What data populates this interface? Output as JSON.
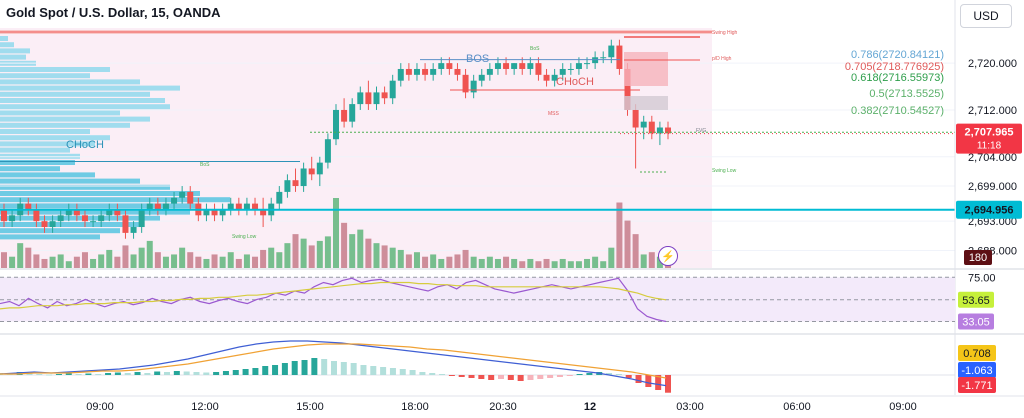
{
  "window": {
    "title": "Gold Spot / U.S. Dollar, 15, OANDA",
    "currency_button": "USD",
    "indicator_badge": "180"
  },
  "chart_data": [
    {
      "type": "candlestick",
      "name": "price",
      "ylim": [
        2685,
        2726
      ],
      "y_ticks": [
        "2,720.000",
        "2,712.000",
        "2,704.000",
        "2,699.000",
        "2,693.000",
        "2,688.000"
      ],
      "y_tick_values": [
        2720,
        2712,
        2704,
        2699,
        2693,
        2688
      ],
      "price_labels": [
        {
          "text": "2,707.965",
          "sub": "11:18",
          "value": 2707.965,
          "color": "#f23645"
        },
        {
          "text": "2,694.956",
          "value": 2694.956,
          "color": "#00bcd4"
        }
      ],
      "x_ticks": [
        "09:00",
        "12:00",
        "15:00",
        "18:00",
        "20:30",
        "12",
        "03:00",
        "06:00",
        "09:00"
      ],
      "fib_levels": [
        {
          "label": "0.786(2720.84121)",
          "value": 2720.84121,
          "color": "#64a6d4"
        },
        {
          "label": "0.705(2718.776925)",
          "value": 2718.776925,
          "color": "#e05a5a"
        },
        {
          "label": "0.618(2716.55973)",
          "value": 2716.55973,
          "color": "#2e9e4b"
        },
        {
          "label": "0.5(2713.5525)",
          "value": 2713.5525,
          "color": "#5bb06a"
        },
        {
          "label": "0.382(2710.54527)",
          "value": 2710.54527,
          "color": "#5bb06a"
        }
      ],
      "annotations": [
        {
          "text": "BOS",
          "color": "#5b8fc7"
        },
        {
          "text": "CHoCH",
          "color": "#e05a5a"
        },
        {
          "text": "CHoCH",
          "color": "#2e93b8"
        },
        {
          "text": "BoS",
          "color": "#4caf50"
        },
        {
          "text": "BoS",
          "color": "#4caf50"
        },
        {
          "text": "MSS",
          "color": "#e05a5a"
        },
        {
          "text": "Swing High",
          "color": "#e05a5a"
        },
        {
          "text": "p/D High",
          "color": "#e05a5a"
        },
        {
          "text": "Swing Low",
          "color": "#4caf50"
        },
        {
          "text": "Swing Low",
          "color": "#4caf50"
        },
        {
          "text": "FVG",
          "color": "#787b86"
        }
      ],
      "candles": [
        [
          2695,
          2696,
          2692,
          2693
        ],
        [
          2693,
          2695,
          2692,
          2694
        ],
        [
          2694,
          2697,
          2693,
          2696
        ],
        [
          2696,
          2697,
          2694,
          2695
        ],
        [
          2695,
          2696,
          2692,
          2693
        ],
        [
          2693,
          2694,
          2691,
          2692
        ],
        [
          2692,
          2694,
          2691,
          2693
        ],
        [
          2693,
          2695,
          2692,
          2694
        ],
        [
          2694,
          2696,
          2693,
          2695
        ],
        [
          2695,
          2696,
          2693,
          2694
        ],
        [
          2694,
          2695,
          2692,
          2693
        ],
        [
          2693,
          2694,
          2692,
          2693
        ],
        [
          2693,
          2695,
          2692,
          2694
        ],
        [
          2694,
          2696,
          2693,
          2695
        ],
        [
          2695,
          2696,
          2693,
          2694
        ],
        [
          2694,
          2695,
          2690,
          2691
        ],
        [
          2691,
          2693,
          2690,
          2692
        ],
        [
          2692,
          2696,
          2691,
          2695
        ],
        [
          2695,
          2697,
          2694,
          2696
        ],
        [
          2696,
          2697,
          2694,
          2695
        ],
        [
          2695,
          2697,
          2694,
          2696
        ],
        [
          2696,
          2698,
          2695,
          2697
        ],
        [
          2697,
          2699,
          2696,
          2698
        ],
        [
          2698,
          2699,
          2695,
          2696
        ],
        [
          2696,
          2697,
          2693,
          2694
        ],
        [
          2694,
          2696,
          2693,
          2695
        ],
        [
          2695,
          2696,
          2693,
          2694
        ],
        [
          2694,
          2696,
          2693,
          2695
        ],
        [
          2695,
          2697,
          2694,
          2696
        ],
        [
          2696,
          2697,
          2694,
          2695
        ],
        [
          2695,
          2697,
          2694,
          2696
        ],
        [
          2696,
          2697,
          2694,
          2695
        ],
        [
          2695,
          2697,
          2692,
          2694
        ],
        [
          2694,
          2697,
          2693,
          2696
        ],
        [
          2696,
          2699,
          2695,
          2698
        ],
        [
          2698,
          2701,
          2697,
          2700
        ],
        [
          2700,
          2702,
          2698,
          2699
        ],
        [
          2699,
          2703,
          2698,
          2702
        ],
        [
          2702,
          2704,
          2700,
          2701
        ],
        [
          2701,
          2704,
          2699,
          2703
        ],
        [
          2703,
          2708,
          2702,
          2707
        ],
        [
          2707,
          2713,
          2706,
          2712
        ],
        [
          2712,
          2714,
          2709,
          2710
        ],
        [
          2710,
          2714,
          2709,
          2713
        ],
        [
          2713,
          2716,
          2712,
          2715
        ],
        [
          2715,
          2717,
          2712,
          2713
        ],
        [
          2713,
          2716,
          2712,
          2715
        ],
        [
          2715,
          2716,
          2713,
          2714
        ],
        [
          2714,
          2718,
          2713,
          2717
        ],
        [
          2717,
          2720,
          2716,
          2719
        ],
        [
          2719,
          2720,
          2717,
          2718
        ],
        [
          2718,
          2720,
          2717,
          2719
        ],
        [
          2719,
          2720,
          2717,
          2718
        ],
        [
          2718,
          2720,
          2717,
          2719
        ],
        [
          2719,
          2721,
          2718,
          2720
        ],
        [
          2720,
          2721,
          2718,
          2719
        ],
        [
          2719,
          2720,
          2717,
          2718
        ],
        [
          2718,
          2719,
          2714,
          2715
        ],
        [
          2715,
          2718,
          2714,
          2717
        ],
        [
          2717,
          2719,
          2716,
          2718
        ],
        [
          2718,
          2720,
          2717,
          2719
        ],
        [
          2719,
          2721,
          2718,
          2720
        ],
        [
          2720,
          2721,
          2718,
          2719
        ],
        [
          2719,
          2720,
          2718,
          2720
        ],
        [
          2720,
          2721,
          2718,
          2719
        ],
        [
          2719,
          2721,
          2718,
          2720
        ],
        [
          2720,
          2721,
          2717,
          2718
        ],
        [
          2718,
          2719,
          2716,
          2717
        ],
        [
          2717,
          2719,
          2716,
          2718
        ],
        [
          2718,
          2720,
          2717,
          2719
        ],
        [
          2719,
          2720,
          2718,
          2719
        ],
        [
          2719,
          2721,
          2718,
          2720
        ],
        [
          2720,
          2721,
          2719,
          2720
        ],
        [
          2720,
          2722,
          2719,
          2721
        ],
        [
          2721,
          2722,
          2720,
          2721
        ],
        [
          2721,
          2724,
          2720,
          2723
        ],
        [
          2723,
          2724,
          2718,
          2719
        ],
        [
          2719,
          2720,
          2711,
          2712
        ],
        [
          2712,
          2713,
          2702,
          2709
        ],
        [
          2709,
          2711,
          2707,
          2710
        ],
        [
          2710,
          2711,
          2707,
          2708
        ],
        [
          2708,
          2710,
          2706,
          2709
        ],
        [
          2709,
          2710,
          2707,
          2708
        ]
      ],
      "volume": [
        14,
        10,
        22,
        18,
        12,
        8,
        10,
        12,
        6,
        10,
        14,
        8,
        12,
        16,
        10,
        20,
        12,
        18,
        24,
        14,
        10,
        12,
        18,
        14,
        10,
        8,
        12,
        10,
        14,
        8,
        12,
        10,
        16,
        18,
        14,
        22,
        30,
        26,
        20,
        24,
        28,
        62,
        40,
        30,
        34,
        26,
        22,
        20,
        18,
        16,
        12,
        14,
        10,
        12,
        8,
        10,
        12,
        16,
        10,
        8,
        10,
        8,
        10,
        8,
        6,
        8,
        6,
        8,
        6,
        8,
        6,
        6,
        8,
        10,
        6,
        18,
        58,
        42,
        30,
        12,
        14,
        10,
        8
      ]
    },
    {
      "type": "line",
      "name": "oscillator",
      "y_levels": [
        "75.00",
        "53.65",
        "33.05"
      ],
      "y_level_values": [
        75,
        53.65,
        33.05
      ],
      "series": [
        {
          "color": "#9b59d0",
          "values": [
            50,
            52,
            48,
            55,
            50,
            46,
            52,
            48,
            50,
            54,
            50,
            47,
            50,
            52,
            49,
            51,
            55,
            52,
            50,
            54,
            56,
            52,
            50,
            53,
            55,
            52,
            50,
            54,
            56,
            60,
            58,
            62,
            60,
            66,
            70,
            68,
            72,
            74,
            70,
            72,
            73,
            70,
            68,
            66,
            64,
            62,
            66,
            68,
            64,
            70,
            72,
            68,
            64,
            62,
            60,
            62,
            64,
            66,
            68,
            66,
            64,
            66,
            68,
            70,
            72,
            74,
            62,
            45,
            38,
            35,
            33.05
          ]
        },
        {
          "color": "#d6cc3d",
          "values": [
            45,
            46,
            46,
            47,
            48,
            48,
            48,
            49,
            49,
            50,
            50,
            50,
            51,
            51,
            51,
            52,
            52,
            53,
            53,
            54,
            54,
            55,
            55,
            56,
            56,
            57,
            58,
            58,
            59,
            60,
            61,
            62,
            63,
            64,
            65,
            66,
            67,
            68,
            69,
            69,
            70,
            70,
            70,
            70,
            69,
            69,
            68,
            68,
            67,
            67,
            67,
            66,
            66,
            66,
            66,
            66,
            66,
            66,
            66,
            66,
            66,
            66,
            66,
            66,
            65,
            64,
            62,
            60,
            57,
            55,
            53.65
          ]
        }
      ]
    },
    {
      "type": "histogram",
      "name": "macd",
      "y_levels": [
        "0.708",
        "-1.063",
        "-1.771"
      ],
      "y_level_values": [
        0.708,
        -1.063,
        -1.771
      ],
      "histogram": [
        0.2,
        0.1,
        0.3,
        0.2,
        0.1,
        0.05,
        0.1,
        0.2,
        0.1,
        0.15,
        0.1,
        0.2,
        0.25,
        0.2,
        0.3,
        0.2,
        0.35,
        0.3,
        0.4,
        0.35,
        0.3,
        0.25,
        0.3,
        0.4,
        0.5,
        0.6,
        0.7,
        0.9,
        1.0,
        1.2,
        1.4,
        1.5,
        1.7,
        1.6,
        1.4,
        1.3,
        1.2,
        1.0,
        0.9,
        0.8,
        0.7,
        0.6,
        0.5,
        0.3,
        0.2,
        0.1,
        -0.1,
        -0.2,
        -0.3,
        -0.4,
        -0.5,
        -0.4,
        -0.5,
        -0.6,
        -0.5,
        -0.4,
        -0.3,
        -0.2,
        -0.1,
        0.1,
        0.2,
        0.3,
        0.2,
        0.1,
        -0.3,
        -0.8,
        -1.2,
        -1.5,
        -1.771
      ],
      "series": [
        {
          "color": "#3f5fd4",
          "values": [
            0.1,
            0.2,
            0.3,
            0.2,
            0.3,
            0.4,
            0.5,
            0.6,
            0.8,
            1.0,
            1.3,
            1.6,
            2.0,
            2.4,
            2.8,
            3.1,
            3.3,
            3.4,
            3.4,
            3.3,
            3.2,
            3.0,
            2.8,
            2.6,
            2.4,
            2.2,
            2.0,
            1.8,
            1.6,
            1.4,
            1.2,
            1.0,
            0.8,
            0.6,
            0.4,
            0.2,
            -0.1,
            -0.4,
            -0.8,
            -1.063
          ]
        },
        {
          "color": "#f0a235",
          "values": [
            0.1,
            0.1,
            0.2,
            0.2,
            0.2,
            0.3,
            0.4,
            0.4,
            0.5,
            0.7,
            0.9,
            1.1,
            1.4,
            1.7,
            2.0,
            2.3,
            2.6,
            2.8,
            3.0,
            3.1,
            3.1,
            3.1,
            3.0,
            2.9,
            2.8,
            2.6,
            2.5,
            2.3,
            2.1,
            1.9,
            1.7,
            1.5,
            1.3,
            1.1,
            0.9,
            0.7,
            0.5,
            0.3,
            0.0,
            -0.3
          ]
        }
      ]
    }
  ]
}
